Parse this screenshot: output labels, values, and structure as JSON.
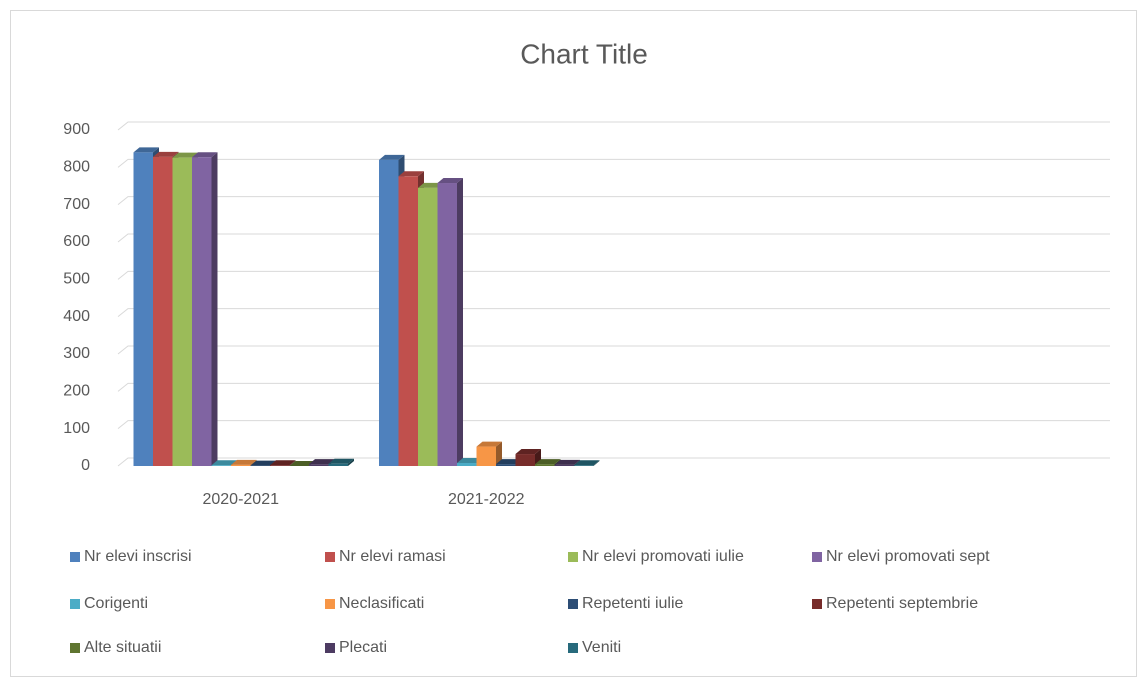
{
  "chart_data": {
    "type": "bar3d",
    "title": "Chart Title",
    "categories": [
      "2020-2021",
      "2021-2022",
      null,
      null
    ],
    "series": [
      {
        "name": "Nr elevi inscrisi",
        "color": "#4f81bd",
        "values": [
          840,
          820,
          null,
          null
        ]
      },
      {
        "name": "Nr elevi ramasi",
        "color": "#c0504d",
        "values": [
          828,
          776,
          null,
          null
        ]
      },
      {
        "name": "Nr elevi promovati iulie",
        "color": "#9bbb59",
        "values": [
          826,
          745,
          null,
          null
        ]
      },
      {
        "name": "Nr elevi promovati sept",
        "color": "#8064a2",
        "values": [
          827,
          758,
          null,
          null
        ]
      },
      {
        "name": "Corigenti",
        "color": "#4bacc6",
        "values": [
          2,
          8,
          null,
          null
        ]
      },
      {
        "name": "Neclasificati",
        "color": "#f79646",
        "values": [
          3,
          52,
          null,
          null
        ]
      },
      {
        "name": "Repetenti iulie",
        "color": "#2c4d75",
        "values": [
          1,
          5,
          null,
          null
        ]
      },
      {
        "name": "Repetenti septembrie",
        "color": "#772c2a",
        "values": [
          2,
          32,
          null,
          null
        ]
      },
      {
        "name": "Alte situatii",
        "color": "#5f7530",
        "values": [
          0,
          5,
          null,
          null
        ]
      },
      {
        "name": "Plecati",
        "color": "#4d3b62",
        "values": [
          5,
          3,
          null,
          null
        ]
      },
      {
        "name": "Veniti",
        "color": "#276a7c",
        "values": [
          6,
          2,
          null,
          null
        ]
      }
    ],
    "ylim": [
      0,
      900
    ],
    "yticks": [
      0,
      100,
      200,
      300,
      400,
      500,
      600,
      700,
      800,
      900
    ],
    "grid": true,
    "legend": "bottom"
  }
}
